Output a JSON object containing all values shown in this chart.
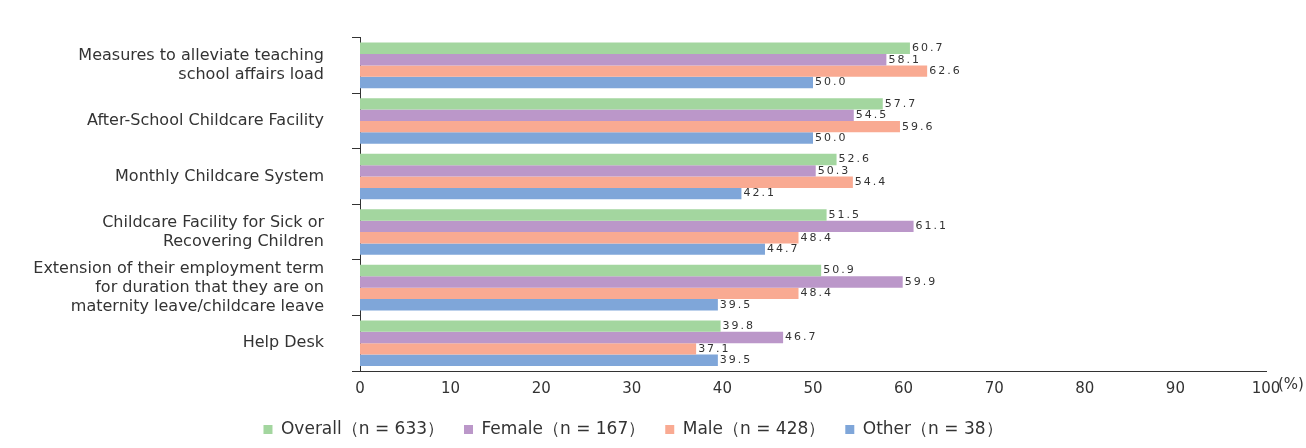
{
  "chart_data": {
    "type": "bar",
    "orientation": "horizontal",
    "xlabel": "(%)",
    "categories": [
      "Measures to alleviate teaching school affairs load",
      "After-School Childcare Facility",
      "Monthly Childcare System",
      "Childcare Facility for Sick or Recovering Children",
      "Extension of their employment term for duration that they are on maternity leave/childcare leave",
      "Help Desk"
    ],
    "series": [
      {
        "name": "Overall（n = 633）",
        "color": "#a3d69f",
        "values": [
          60.7,
          57.7,
          52.6,
          51.5,
          50.9,
          39.8
        ],
        "value_labels": [
          "60.7",
          "57.7",
          "52.6",
          "51.5",
          "50.9",
          "39.8"
        ]
      },
      {
        "name": "Female（n = 167）",
        "color": "#bb97c9",
        "values": [
          58.1,
          54.5,
          50.3,
          61.1,
          59.9,
          46.7
        ],
        "value_labels": [
          "58.1",
          "54.5",
          "50.3",
          "61.1",
          "59.9",
          "46.7"
        ]
      },
      {
        "name": "Male（n = 428）",
        "color": "#f9aa92",
        "values": [
          62.6,
          59.6,
          54.4,
          48.4,
          48.4,
          37.1
        ],
        "value_labels": [
          "62.6",
          "59.6",
          "54.4",
          "48.4",
          "48.4",
          "37.1"
        ]
      },
      {
        "name": "Other（n = 38）",
        "color": "#7fa6d9",
        "values": [
          50.0,
          50.0,
          42.1,
          44.7,
          39.5,
          39.5
        ],
        "value_labels": [
          "50.0",
          "50.0",
          "42.1",
          "44.7",
          "39.5",
          "39.5"
        ]
      }
    ],
    "xlim": [
      0,
      100
    ],
    "xticks": [
      0,
      10,
      20,
      30,
      40,
      50,
      60,
      70,
      80,
      90,
      100
    ],
    "legend": "bottom",
    "grid": false
  }
}
